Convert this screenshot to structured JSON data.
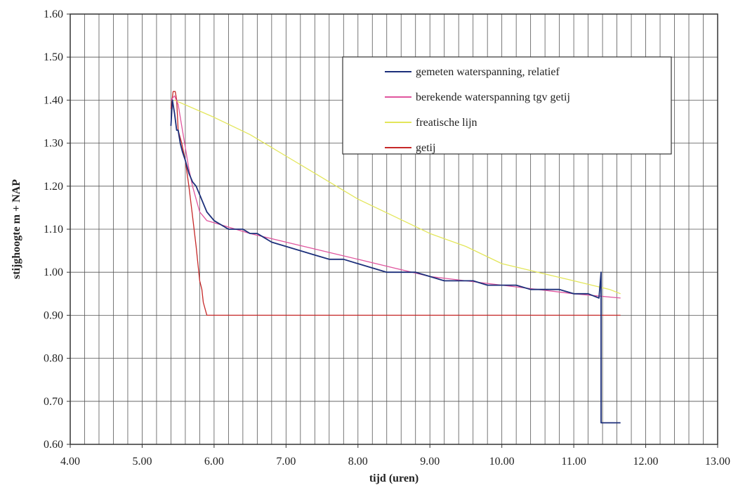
{
  "chart_data": {
    "type": "line",
    "title": "",
    "xlabel": "tijd (uren)",
    "ylabel": "stijghoogte m + NAP",
    "xlim": [
      4.0,
      13.0
    ],
    "ylim": [
      0.6,
      1.6
    ],
    "x_ticks": [
      "4.00",
      "5.00",
      "6.00",
      "7.00",
      "8.00",
      "9.00",
      "10.00",
      "11.00",
      "12.00",
      "13.00"
    ],
    "y_ticks": [
      "0.60",
      "0.70",
      "0.80",
      "0.90",
      "1.00",
      "1.10",
      "1.20",
      "1.30",
      "1.40",
      "1.50",
      "1.60"
    ],
    "x_minor_step": 0.2,
    "grid": true,
    "legend_position": "top-right",
    "series": [
      {
        "name": "gemeten waterspanning, relatief",
        "color": "#1c2f7a",
        "x": [
          5.4,
          5.42,
          5.45,
          5.48,
          5.5,
          5.53,
          5.56,
          5.6,
          5.65,
          5.7,
          5.75,
          5.8,
          5.85,
          5.9,
          6.0,
          6.1,
          6.2,
          6.3,
          6.4,
          6.5,
          6.6,
          6.7,
          6.8,
          7.0,
          7.2,
          7.4,
          7.6,
          7.8,
          8.0,
          8.2,
          8.4,
          8.6,
          8.8,
          9.0,
          9.2,
          9.4,
          9.6,
          9.8,
          10.0,
          10.2,
          10.4,
          10.6,
          10.8,
          11.0,
          11.2,
          11.35,
          11.38,
          11.38,
          11.4,
          11.65
        ],
        "y": [
          1.34,
          1.4,
          1.37,
          1.33,
          1.33,
          1.3,
          1.28,
          1.26,
          1.23,
          1.21,
          1.2,
          1.18,
          1.16,
          1.14,
          1.12,
          1.11,
          1.1,
          1.1,
          1.1,
          1.09,
          1.09,
          1.08,
          1.07,
          1.06,
          1.05,
          1.04,
          1.03,
          1.03,
          1.02,
          1.01,
          1.0,
          1.0,
          1.0,
          0.99,
          0.98,
          0.98,
          0.98,
          0.97,
          0.97,
          0.97,
          0.96,
          0.96,
          0.96,
          0.95,
          0.95,
          0.94,
          1.0,
          0.65,
          0.65,
          0.65
        ]
      },
      {
        "name": "berekende waterspanning tgv getij",
        "color": "#e0559e",
        "x": [
          5.4,
          5.45,
          5.5,
          5.55,
          5.6,
          5.65,
          5.7,
          5.75,
          5.8,
          5.85,
          5.9,
          6.5,
          7.0,
          7.5,
          8.0,
          8.5,
          9.0,
          9.5,
          10.0,
          10.5,
          11.0,
          11.65
        ],
        "y": [
          1.4,
          1.41,
          1.39,
          1.34,
          1.29,
          1.24,
          1.2,
          1.17,
          1.14,
          1.13,
          1.12,
          1.09,
          1.07,
          1.05,
          1.03,
          1.01,
          0.99,
          0.98,
          0.97,
          0.96,
          0.95,
          0.94
        ]
      },
      {
        "name": "freatische lijn",
        "color": "#e3e65a",
        "x": [
          5.45,
          6.0,
          6.5,
          7.0,
          7.5,
          8.0,
          8.5,
          9.0,
          9.5,
          10.0,
          10.5,
          11.0,
          11.5,
          11.65
        ],
        "y": [
          1.4,
          1.36,
          1.32,
          1.27,
          1.22,
          1.17,
          1.13,
          1.09,
          1.06,
          1.02,
          1.0,
          0.98,
          0.96,
          0.95
        ]
      },
      {
        "name": "getij",
        "color": "#c62828",
        "x": [
          5.4,
          5.43,
          5.46,
          5.48,
          5.5,
          5.55,
          5.6,
          5.65,
          5.7,
          5.75,
          5.8,
          5.83,
          5.85,
          5.9,
          6.5,
          7.0,
          8.0,
          9.0,
          10.0,
          11.0,
          11.65
        ],
        "y": [
          1.38,
          1.42,
          1.42,
          1.4,
          1.33,
          1.3,
          1.26,
          1.2,
          1.13,
          1.06,
          0.98,
          0.96,
          0.93,
          0.9,
          0.9,
          0.9,
          0.9,
          0.9,
          0.9,
          0.9,
          0.9
        ]
      }
    ]
  }
}
